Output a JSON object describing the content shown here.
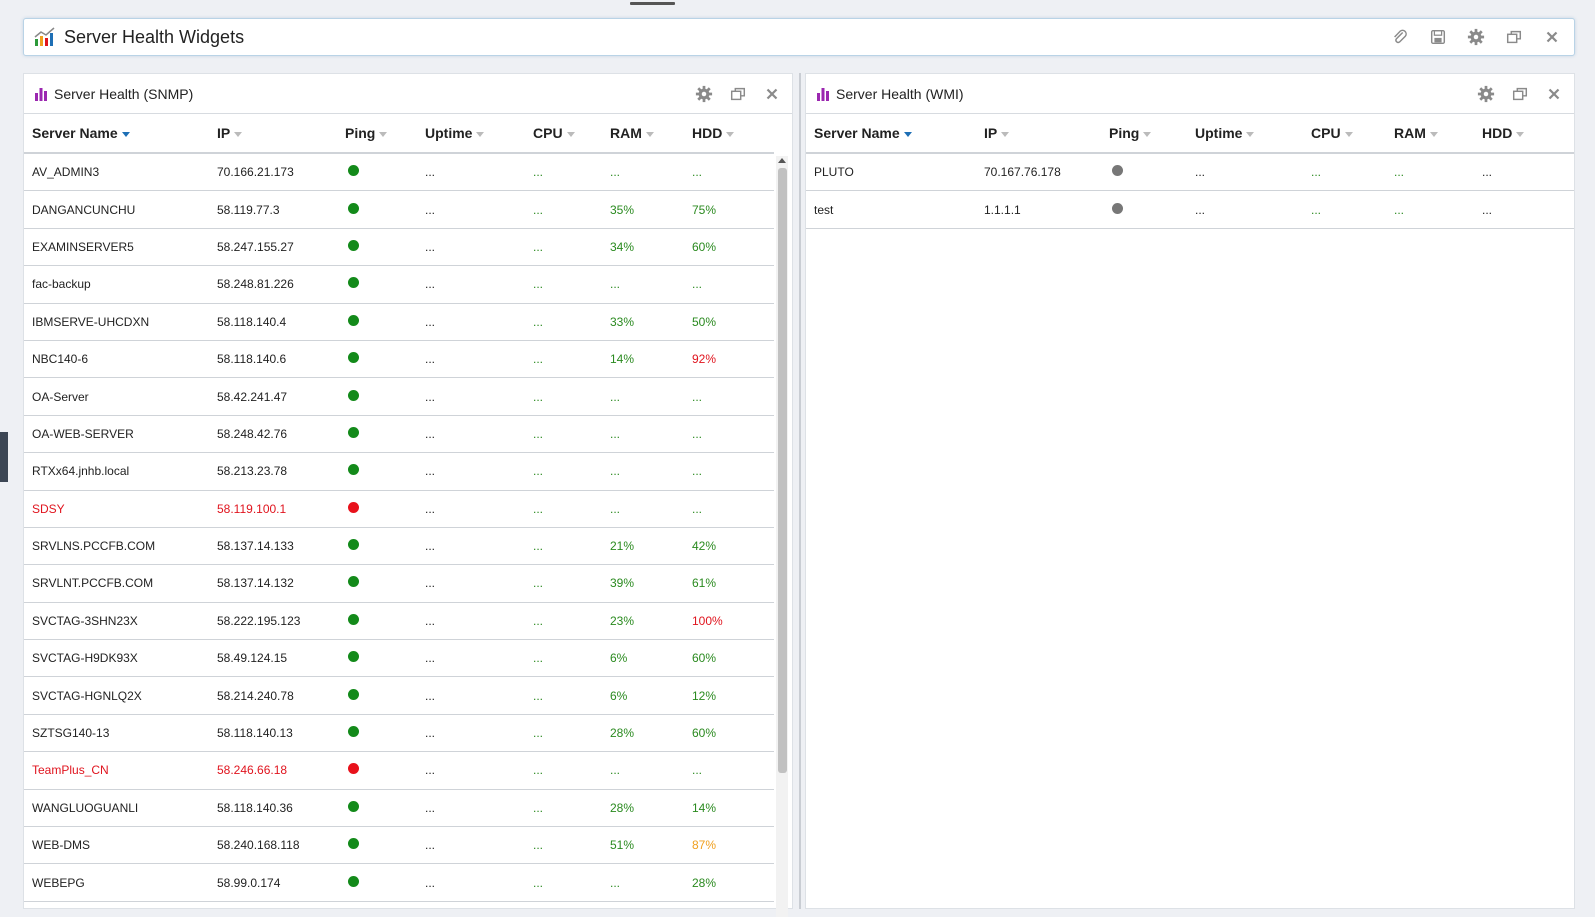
{
  "window": {
    "title": "Server Health Widgets",
    "actions": [
      "paperclip-icon",
      "save-icon",
      "gear-icon",
      "restore-icon",
      "close-icon"
    ]
  },
  "snmp": {
    "title": "Server Health (SNMP)",
    "columns": [
      "Server Name",
      "IP",
      "Ping",
      "Uptime",
      "CPU",
      "RAM",
      "HDD"
    ],
    "sort_column": "Server Name",
    "rows": [
      {
        "name": "AV_ADMIN3",
        "ip": "70.166.21.173",
        "ping": "up",
        "uptime": "...",
        "cpu": "...",
        "ram": "...",
        "ram_status": "ok",
        "hdd": "...",
        "hdd_status": "ok",
        "alert": false
      },
      {
        "name": "DANGANCUNCHU",
        "ip": "58.119.77.3",
        "ping": "up",
        "uptime": "...",
        "cpu": "...",
        "ram": "35%",
        "ram_status": "ok",
        "hdd": "75%",
        "hdd_status": "ok",
        "alert": false
      },
      {
        "name": "EXAMINSERVER5",
        "ip": "58.247.155.27",
        "ping": "up",
        "uptime": "...",
        "cpu": "...",
        "ram": "34%",
        "ram_status": "ok",
        "hdd": "60%",
        "hdd_status": "ok",
        "alert": false
      },
      {
        "name": "fac-backup",
        "ip": "58.248.81.226",
        "ping": "up",
        "uptime": "...",
        "cpu": "...",
        "ram": "...",
        "ram_status": "ok",
        "hdd": "...",
        "hdd_status": "ok",
        "alert": false
      },
      {
        "name": "IBMSERVE-UHCDXN",
        "ip": "58.118.140.4",
        "ping": "up",
        "uptime": "...",
        "cpu": "...",
        "ram": "33%",
        "ram_status": "ok",
        "hdd": "50%",
        "hdd_status": "ok",
        "alert": false
      },
      {
        "name": "NBC140-6",
        "ip": "58.118.140.6",
        "ping": "up",
        "uptime": "...",
        "cpu": "...",
        "ram": "14%",
        "ram_status": "ok",
        "hdd": "92%",
        "hdd_status": "critical",
        "alert": false
      },
      {
        "name": "OA-Server",
        "ip": "58.42.241.47",
        "ping": "up",
        "uptime": "...",
        "cpu": "...",
        "ram": "...",
        "ram_status": "ok",
        "hdd": "...",
        "hdd_status": "ok",
        "alert": false
      },
      {
        "name": "OA-WEB-SERVER",
        "ip": "58.248.42.76",
        "ping": "up",
        "uptime": "...",
        "cpu": "...",
        "ram": "...",
        "ram_status": "ok",
        "hdd": "...",
        "hdd_status": "ok",
        "alert": false
      },
      {
        "name": "RTXx64.jnhb.local",
        "ip": "58.213.23.78",
        "ping": "up",
        "uptime": "...",
        "cpu": "...",
        "ram": "...",
        "ram_status": "ok",
        "hdd": "...",
        "hdd_status": "ok",
        "alert": false
      },
      {
        "name": "SDSY",
        "ip": "58.119.100.1",
        "ping": "down",
        "uptime": "...",
        "cpu": "...",
        "ram": "...",
        "ram_status": "ok",
        "hdd": "...",
        "hdd_status": "ok",
        "alert": true
      },
      {
        "name": "SRVLNS.PCCFB.COM",
        "ip": "58.137.14.133",
        "ping": "up",
        "uptime": "...",
        "cpu": "...",
        "ram": "21%",
        "ram_status": "ok",
        "hdd": "42%",
        "hdd_status": "ok",
        "alert": false
      },
      {
        "name": "SRVLNT.PCCFB.COM",
        "ip": "58.137.14.132",
        "ping": "up",
        "uptime": "...",
        "cpu": "...",
        "ram": "39%",
        "ram_status": "ok",
        "hdd": "61%",
        "hdd_status": "ok",
        "alert": false
      },
      {
        "name": "SVCTAG-3SHN23X",
        "ip": "58.222.195.123",
        "ping": "up",
        "uptime": "...",
        "cpu": "...",
        "ram": "23%",
        "ram_status": "ok",
        "hdd": "100%",
        "hdd_status": "critical",
        "alert": false
      },
      {
        "name": "SVCTAG-H9DK93X",
        "ip": "58.49.124.15",
        "ping": "up",
        "uptime": "...",
        "cpu": "...",
        "ram": "6%",
        "ram_status": "ok",
        "hdd": "60%",
        "hdd_status": "ok",
        "alert": false
      },
      {
        "name": "SVCTAG-HGNLQ2X",
        "ip": "58.214.240.78",
        "ping": "up",
        "uptime": "...",
        "cpu": "...",
        "ram": "6%",
        "ram_status": "ok",
        "hdd": "12%",
        "hdd_status": "ok",
        "alert": false
      },
      {
        "name": "SZTSG140-13",
        "ip": "58.118.140.13",
        "ping": "up",
        "uptime": "...",
        "cpu": "...",
        "ram": "28%",
        "ram_status": "ok",
        "hdd": "60%",
        "hdd_status": "ok",
        "alert": false
      },
      {
        "name": "TeamPlus_CN",
        "ip": "58.246.66.18",
        "ping": "down",
        "uptime": "...",
        "cpu": "...",
        "ram": "...",
        "ram_status": "ok",
        "hdd": "...",
        "hdd_status": "ok",
        "alert": true
      },
      {
        "name": "WANGLUOGUANLI",
        "ip": "58.118.140.36",
        "ping": "up",
        "uptime": "...",
        "cpu": "...",
        "ram": "28%",
        "ram_status": "ok",
        "hdd": "14%",
        "hdd_status": "ok",
        "alert": false
      },
      {
        "name": "WEB-DMS",
        "ip": "58.240.168.118",
        "ping": "up",
        "uptime": "...",
        "cpu": "...",
        "ram": "51%",
        "ram_status": "ok",
        "hdd": "87%",
        "hdd_status": "warning",
        "alert": false
      },
      {
        "name": "WEBEPG",
        "ip": "58.99.0.174",
        "ping": "up",
        "uptime": "...",
        "cpu": "...",
        "ram": "...",
        "ram_status": "ok",
        "hdd": "28%",
        "hdd_status": "ok",
        "alert": false
      }
    ]
  },
  "wmi": {
    "title": "Server Health (WMI)",
    "columns": [
      "Server Name",
      "IP",
      "Ping",
      "Uptime",
      "CPU",
      "RAM",
      "HDD"
    ],
    "sort_column": "Server Name",
    "rows": [
      {
        "name": "PLUTO",
        "ip": "70.167.76.178",
        "ping": "unknown",
        "uptime": "...",
        "cpu": "...",
        "ram": "...",
        "hdd": "..."
      },
      {
        "name": "test",
        "ip": "1.1.1.1",
        "ping": "unknown",
        "uptime": "...",
        "cpu": "...",
        "ram": "...",
        "hdd": "..."
      }
    ]
  },
  "colors": {
    "ok": "#2a8a1f",
    "critical": "#e0141e",
    "warning": "#f0a020",
    "ping_up": "#138a1a",
    "ping_down": "#e8111b",
    "ping_unknown": "#777777",
    "chart_icon": "#9b27b0"
  }
}
